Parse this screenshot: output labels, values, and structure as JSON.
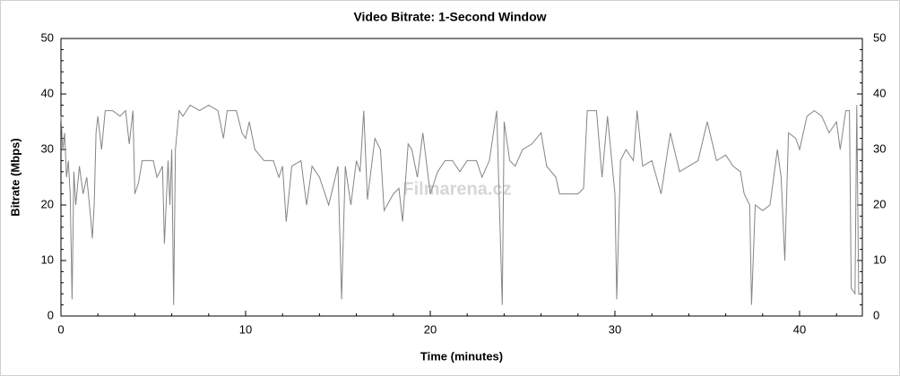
{
  "chart_data": {
    "type": "line",
    "title": "Video Bitrate: 1-Second Window",
    "xlabel": "Time (minutes)",
    "ylabel": "Bitrate (Mbps)",
    "watermark": "Filmarena.cz",
    "color": "#858585",
    "xlim": [
      0,
      43.4
    ],
    "xticks": [
      0,
      10,
      20,
      30,
      40
    ],
    "ylim": [
      0,
      50
    ],
    "yticks": [
      0,
      10,
      20,
      30,
      40,
      50
    ],
    "y2lim": [
      0,
      50
    ],
    "y2ticks": [
      0,
      10,
      20,
      30,
      40,
      50
    ],
    "x": [
      0.0,
      0.1,
      0.2,
      0.3,
      0.4,
      0.5,
      0.6,
      0.7,
      0.8,
      1.0,
      1.2,
      1.4,
      1.6,
      1.7,
      1.8,
      1.9,
      2.0,
      2.2,
      2.4,
      2.8,
      3.2,
      3.5,
      3.7,
      3.9,
      4.0,
      4.2,
      4.4,
      4.6,
      5.0,
      5.2,
      5.5,
      5.6,
      5.8,
      5.9,
      6.0,
      6.1,
      6.2,
      6.4,
      6.6,
      7.0,
      7.5,
      8.0,
      8.5,
      8.8,
      9.0,
      9.5,
      9.8,
      10.0,
      10.2,
      10.5,
      11.0,
      11.5,
      11.8,
      12.0,
      12.2,
      12.5,
      13.0,
      13.3,
      13.6,
      14.0,
      14.5,
      15.0,
      15.2,
      15.4,
      15.7,
      16.0,
      16.2,
      16.4,
      16.6,
      17.0,
      17.3,
      17.5,
      18.0,
      18.3,
      18.5,
      18.8,
      19.0,
      19.3,
      19.6,
      20.0,
      20.4,
      20.8,
      21.2,
      21.6,
      22.0,
      22.5,
      22.8,
      23.2,
      23.6,
      23.9,
      24.0,
      24.3,
      24.6,
      25.0,
      25.5,
      26.0,
      26.3,
      26.8,
      27.0,
      27.5,
      28.0,
      28.3,
      28.5,
      29.0,
      29.3,
      29.6,
      30.0,
      30.1,
      30.3,
      30.6,
      31.0,
      31.2,
      31.5,
      32.0,
      32.5,
      33.0,
      33.5,
      34.0,
      34.5,
      35.0,
      35.5,
      36.0,
      36.4,
      36.8,
      37.0,
      37.3,
      37.4,
      37.6,
      38.0,
      38.4,
      38.6,
      38.8,
      39.0,
      39.2,
      39.4,
      39.8,
      40.0,
      40.4,
      40.8,
      41.2,
      41.6,
      42.0,
      42.2,
      42.5,
      42.7,
      42.8,
      43.0,
      43.1,
      43.2,
      43.3
    ],
    "values": [
      36,
      30,
      33,
      25,
      28,
      22,
      3,
      26,
      20,
      27,
      22,
      25,
      18,
      14,
      20,
      33,
      36,
      30,
      37,
      37,
      36,
      37,
      31,
      37,
      22,
      24,
      28,
      28,
      28,
      25,
      27,
      13,
      28,
      20,
      30,
      2,
      30,
      37,
      36,
      38,
      37,
      38,
      37,
      32,
      37,
      37,
      33,
      32,
      35,
      30,
      28,
      28,
      25,
      27,
      17,
      27,
      28,
      20,
      27,
      25,
      20,
      27,
      3,
      27,
      20,
      28,
      26,
      37,
      21,
      32,
      30,
      19,
      22,
      23,
      17,
      31,
      30,
      25,
      33,
      22,
      26,
      28,
      28,
      26,
      28,
      28,
      25,
      28,
      37,
      2,
      35,
      28,
      27,
      30,
      31,
      33,
      27,
      25,
      22,
      22,
      22,
      23,
      37,
      37,
      25,
      36,
      22,
      3,
      28,
      30,
      28,
      37,
      27,
      28,
      22,
      33,
      26,
      27,
      28,
      35,
      28,
      29,
      27,
      26,
      22,
      20,
      2,
      20,
      19,
      20,
      25,
      30,
      25,
      10,
      33,
      32,
      30,
      36,
      37,
      36,
      33,
      35,
      30,
      37,
      37,
      5,
      4,
      38,
      4,
      4
    ]
  }
}
